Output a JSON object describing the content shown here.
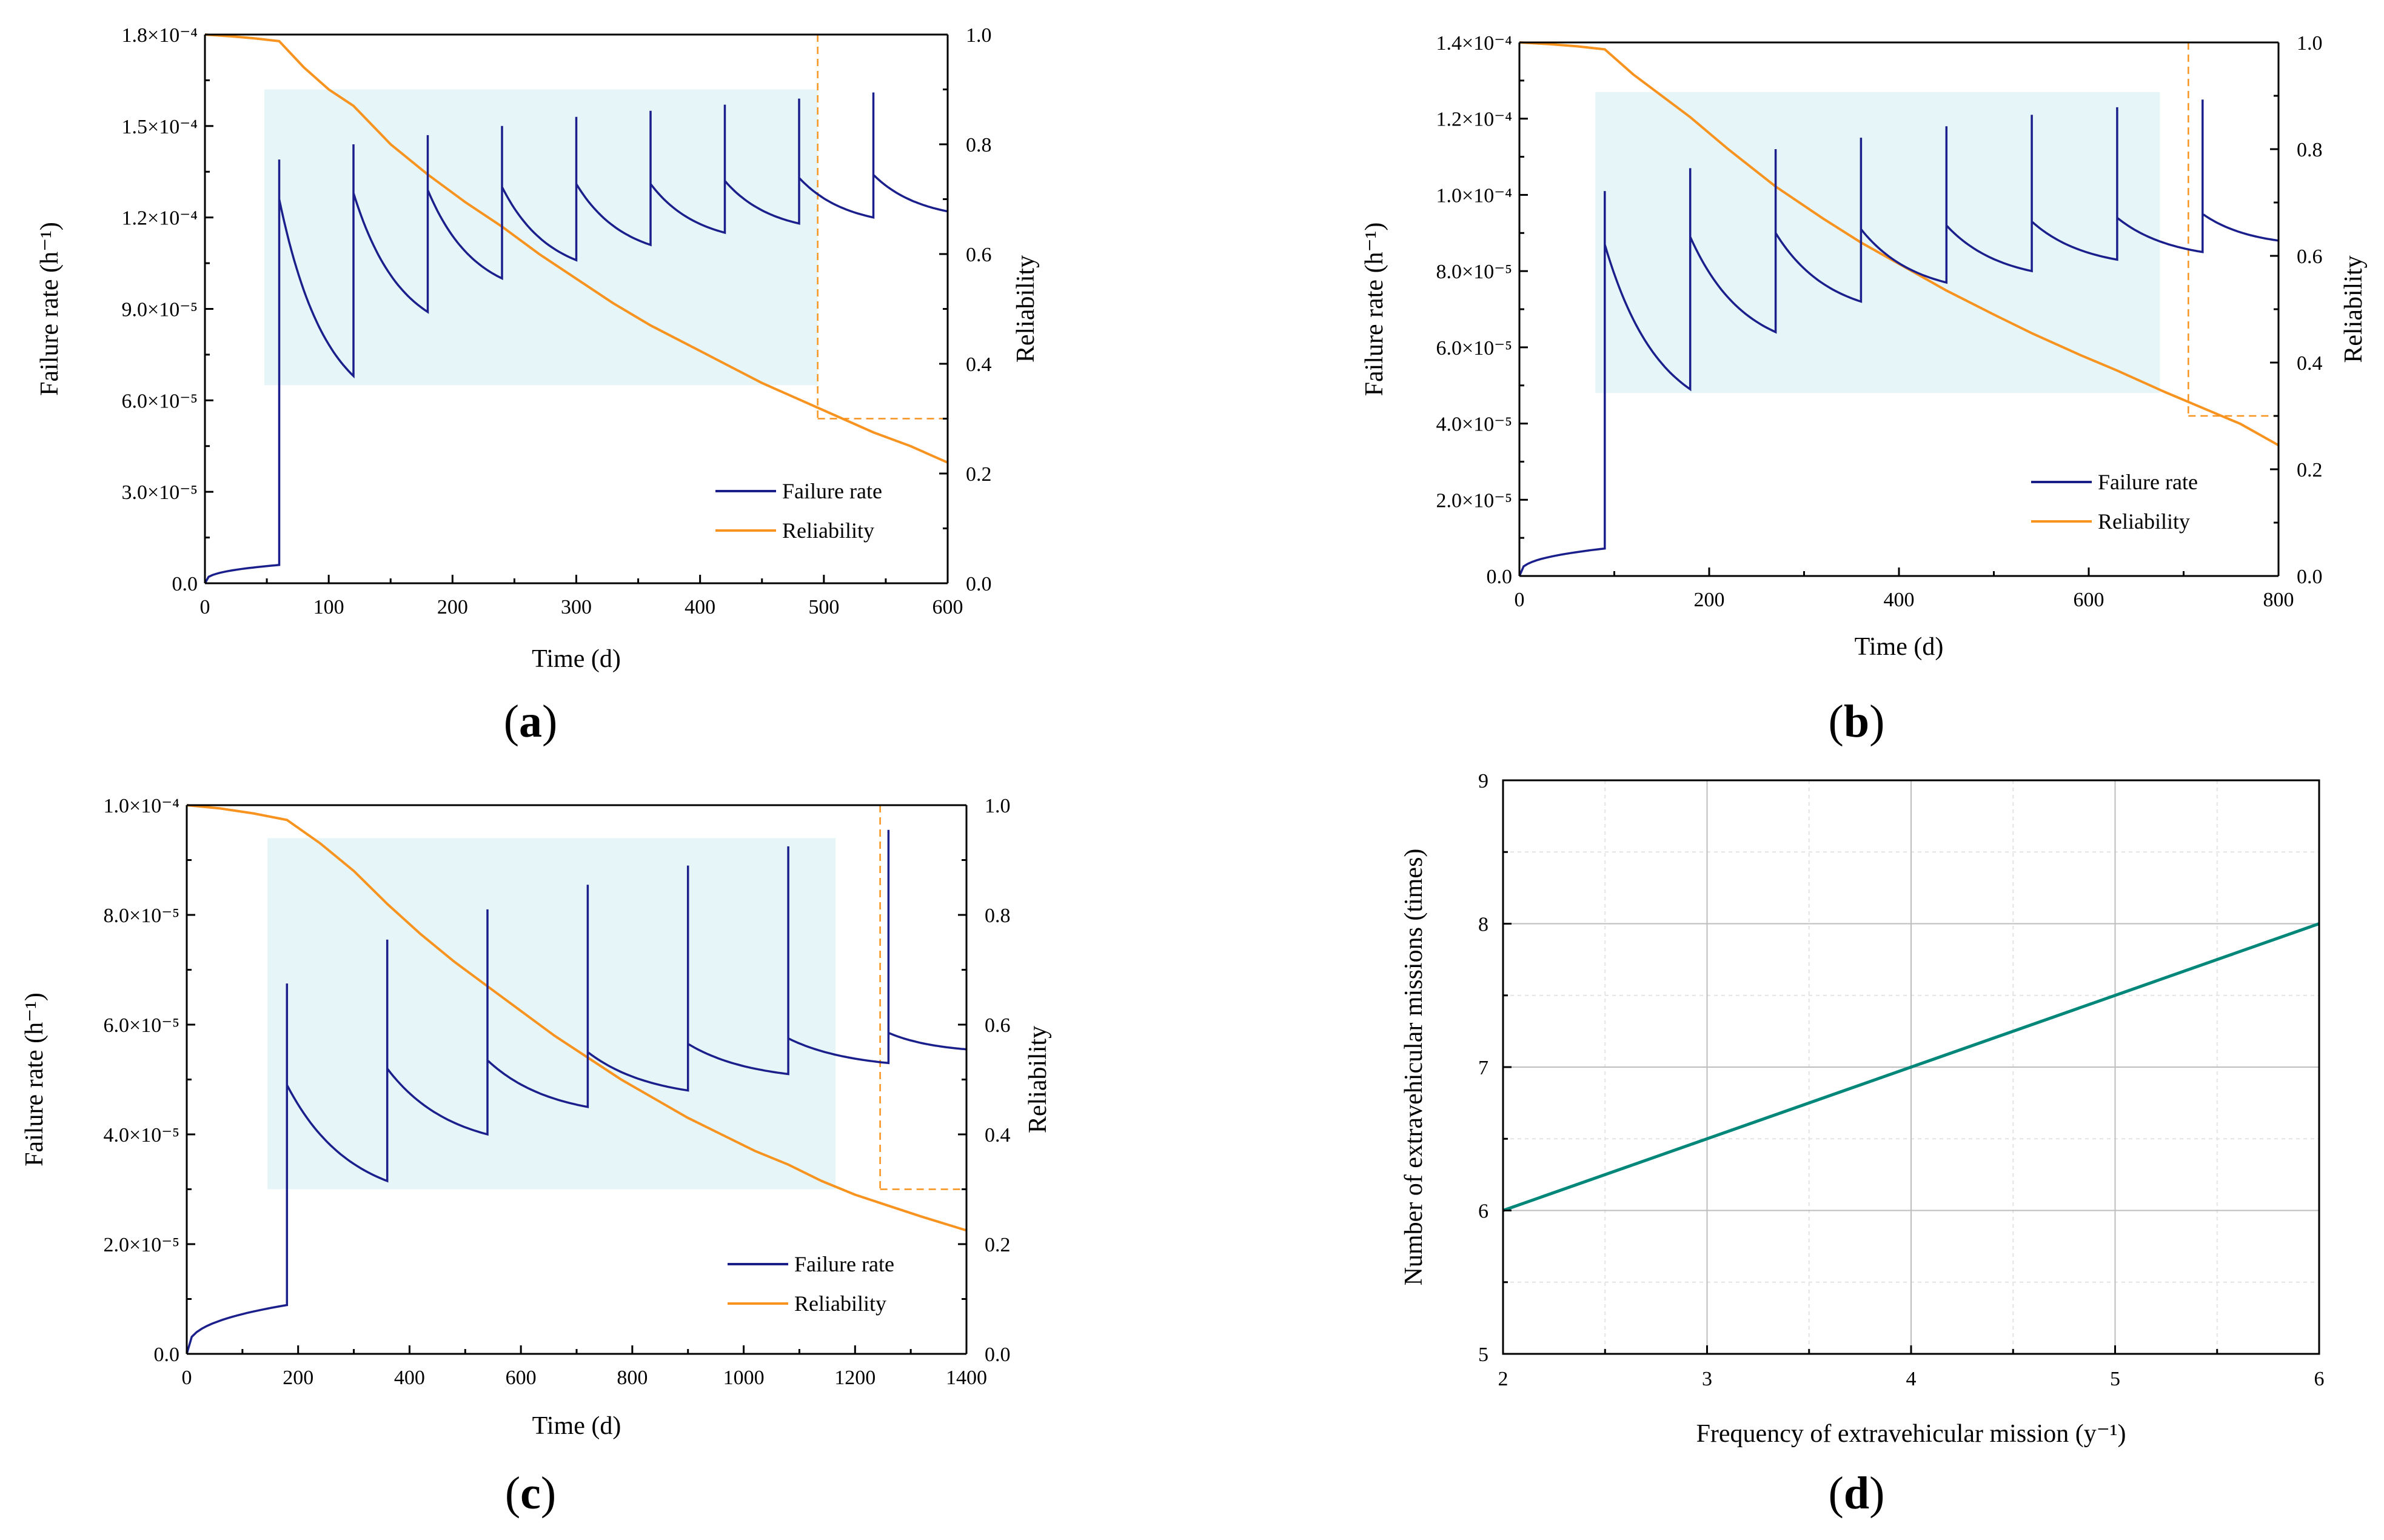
{
  "colors": {
    "failure": "#1a1f8c",
    "reliability": "#f7931e",
    "highlight": "#e6f5f8",
    "teal": "#00877a"
  },
  "chart_data": [
    {
      "id": "a",
      "panel_label": "(a)",
      "panel_letter": "a",
      "type": "line",
      "xlabel": "Time (d)",
      "ylabel_left": "Failure rate (h⁻¹)",
      "ylabel_right": "Reliability",
      "xlim": [
        0,
        600
      ],
      "ylim_left": [
        0,
        0.00018
      ],
      "ylim_right": [
        0,
        1
      ],
      "x_ticks": [
        "0",
        "100",
        "200",
        "300",
        "400",
        "500",
        "600"
      ],
      "y_ticks_left": [
        "0.0",
        "3.0×10⁻⁵",
        "6.0×10⁻⁵",
        "9.0×10⁻⁵",
        "1.2×10⁻⁴",
        "1.5×10⁻⁴",
        "1.8×10⁻⁴"
      ],
      "y_ticks_right": [
        "0.0",
        "0.2",
        "0.4",
        "0.6",
        "0.8",
        "1.0"
      ],
      "legend": [
        "Failure rate",
        "Reliability"
      ],
      "highlight": {
        "x": [
          48,
          495
        ],
        "y": [
          6.5e-05,
          0.000162
        ]
      },
      "threshold": {
        "x": 495,
        "reliability": 0.3
      },
      "failure_rate": {
        "initial_end": 6e-06,
        "period": 60,
        "segments": [
          {
            "start": 60,
            "end": 120,
            "peak": 0.000139,
            "post": 0.000126,
            "low": 6.8e-05
          },
          {
            "start": 120,
            "end": 180,
            "peak": 0.000144,
            "post": 0.000128,
            "low": 8.9e-05
          },
          {
            "start": 180,
            "end": 240,
            "peak": 0.000147,
            "post": 0.000129,
            "low": 0.0001
          },
          {
            "start": 240,
            "end": 300,
            "peak": 0.00015,
            "post": 0.00013,
            "low": 0.000106
          },
          {
            "start": 300,
            "end": 360,
            "peak": 0.000153,
            "post": 0.000131,
            "low": 0.000111
          },
          {
            "start": 360,
            "end": 420,
            "peak": 0.000155,
            "post": 0.000131,
            "low": 0.000115
          },
          {
            "start": 420,
            "end": 480,
            "peak": 0.000157,
            "post": 0.000132,
            "low": 0.000118
          },
          {
            "start": 480,
            "end": 540,
            "peak": 0.000159,
            "post": 0.000133,
            "low": 0.00012
          },
          {
            "start": 540,
            "end": 600,
            "peak": 0.000161,
            "post": 0.000134,
            "low": 0.000122
          }
        ]
      },
      "reliability": {
        "x": [
          0,
          20,
          40,
          60,
          80,
          100,
          120,
          150,
          180,
          210,
          240,
          270,
          300,
          330,
          360,
          390,
          420,
          450,
          480,
          510,
          540,
          570,
          600
        ],
        "y": [
          1.0,
          0.997,
          0.993,
          0.988,
          0.94,
          0.9,
          0.87,
          0.8,
          0.745,
          0.695,
          0.65,
          0.6,
          0.555,
          0.51,
          0.47,
          0.435,
          0.4,
          0.365,
          0.335,
          0.305,
          0.275,
          0.25,
          0.22
        ]
      }
    },
    {
      "id": "b",
      "panel_label": "(b)",
      "panel_letter": "b",
      "type": "line",
      "xlabel": "Time (d)",
      "ylabel_left": "Failure rate (h⁻¹)",
      "ylabel_right": "Reliability",
      "xlim": [
        0,
        800
      ],
      "ylim_left": [
        0,
        0.00014
      ],
      "ylim_right": [
        0,
        1
      ],
      "x_ticks": [
        "0",
        "200",
        "400",
        "600",
        "800"
      ],
      "y_ticks_left": [
        "0.0",
        "2.0×10⁻⁵",
        "4.0×10⁻⁵",
        "6.0×10⁻⁵",
        "8.0×10⁻⁵",
        "1.0×10⁻⁴",
        "1.2×10⁻⁴",
        "1.4×10⁻⁴"
      ],
      "y_ticks_right": [
        "0.0",
        "0.2",
        "0.4",
        "0.6",
        "0.8",
        "1.0"
      ],
      "legend": [
        "Failure rate",
        "Reliability"
      ],
      "highlight": {
        "x": [
          80,
          675
        ],
        "y": [
          4.8e-05,
          0.000127
        ]
      },
      "threshold": {
        "x": 705,
        "reliability": 0.3
      },
      "failure_rate": {
        "initial_end": 7.2e-06,
        "period": 90,
        "segments": [
          {
            "start": 90,
            "end": 180,
            "peak": 0.000101,
            "post": 8.7e-05,
            "low": 4.9e-05
          },
          {
            "start": 180,
            "end": 270,
            "peak": 0.000107,
            "post": 8.9e-05,
            "low": 6.4e-05
          },
          {
            "start": 270,
            "end": 360,
            "peak": 0.000112,
            "post": 9e-05,
            "low": 7.2e-05
          },
          {
            "start": 360,
            "end": 450,
            "peak": 0.000115,
            "post": 9.1e-05,
            "low": 7.7e-05
          },
          {
            "start": 450,
            "end": 540,
            "peak": 0.000118,
            "post": 9.2e-05,
            "low": 8e-05
          },
          {
            "start": 540,
            "end": 630,
            "peak": 0.000121,
            "post": 9.3e-05,
            "low": 8.3e-05
          },
          {
            "start": 630,
            "end": 720,
            "peak": 0.000123,
            "post": 9.4e-05,
            "low": 8.5e-05
          },
          {
            "start": 720,
            "end": 800,
            "peak": 0.000125,
            "post": 9.5e-05,
            "low": 8.8e-05
          }
        ]
      },
      "reliability": {
        "x": [
          0,
          30,
          60,
          90,
          120,
          150,
          180,
          220,
          270,
          320,
          360,
          410,
          450,
          500,
          540,
          590,
          630,
          680,
          720,
          760,
          800
        ],
        "y": [
          1.0,
          0.997,
          0.993,
          0.987,
          0.94,
          0.9,
          0.86,
          0.8,
          0.73,
          0.67,
          0.625,
          0.575,
          0.535,
          0.49,
          0.455,
          0.415,
          0.385,
          0.345,
          0.315,
          0.285,
          0.245
        ]
      }
    },
    {
      "id": "c",
      "panel_label": "(c)",
      "panel_letter": "c",
      "type": "line",
      "xlabel": "Time (d)",
      "ylabel_left": "Failure rate (h⁻¹)",
      "ylabel_right": "Reliability",
      "xlim": [
        0,
        1400
      ],
      "ylim_left": [
        0,
        0.0001
      ],
      "ylim_right": [
        0,
        1
      ],
      "x_ticks": [
        "0",
        "200",
        "400",
        "600",
        "800",
        "1000",
        "1200",
        "1400"
      ],
      "y_ticks_left": [
        "0.0",
        "2.0×10⁻⁵",
        "4.0×10⁻⁵",
        "6.0×10⁻⁵",
        "8.0×10⁻⁵",
        "1.0×10⁻⁴"
      ],
      "y_ticks_right": [
        "0.0",
        "0.2",
        "0.4",
        "0.6",
        "0.8",
        "1.0"
      ],
      "legend": [
        "Failure rate",
        "Reliability"
      ],
      "highlight": {
        "x": [
          145,
          1165
        ],
        "y": [
          3e-05,
          9.4e-05
        ]
      },
      "threshold": {
        "x": 1245,
        "reliability": 0.3
      },
      "failure_rate": {
        "initial_end": 8.9e-06,
        "period": 180,
        "segments": [
          {
            "start": 180,
            "end": 360,
            "peak": 6.75e-05,
            "post": 4.9e-05,
            "low": 3.15e-05
          },
          {
            "start": 360,
            "end": 540,
            "peak": 7.55e-05,
            "post": 5.2e-05,
            "low": 4e-05
          },
          {
            "start": 540,
            "end": 720,
            "peak": 8.1e-05,
            "post": 5.35e-05,
            "low": 4.5e-05
          },
          {
            "start": 720,
            "end": 900,
            "peak": 8.55e-05,
            "post": 5.5e-05,
            "low": 4.8e-05
          },
          {
            "start": 900,
            "end": 1080,
            "peak": 8.9e-05,
            "post": 5.65e-05,
            "low": 5.1e-05
          },
          {
            "start": 1080,
            "end": 1260,
            "peak": 9.25e-05,
            "post": 5.75e-05,
            "low": 5.3e-05
          },
          {
            "start": 1260,
            "end": 1400,
            "peak": 9.55e-05,
            "post": 5.85e-05,
            "low": 5.55e-05
          }
        ]
      },
      "reliability": {
        "x": [
          0,
          60,
          120,
          180,
          240,
          300,
          360,
          420,
          480,
          540,
          600,
          660,
          720,
          780,
          840,
          900,
          960,
          1020,
          1080,
          1140,
          1200,
          1260,
          1320,
          1400
        ],
        "y": [
          1.0,
          0.994,
          0.985,
          0.973,
          0.93,
          0.88,
          0.82,
          0.765,
          0.715,
          0.67,
          0.625,
          0.58,
          0.54,
          0.5,
          0.465,
          0.43,
          0.4,
          0.37,
          0.345,
          0.315,
          0.29,
          0.27,
          0.25,
          0.225
        ]
      }
    },
    {
      "id": "d",
      "panel_label": "(d)",
      "panel_letter": "d",
      "type": "line",
      "xlabel": "Frequency of extravehicular mission (y⁻¹)",
      "ylabel": "Number of extravehicular missions (times)",
      "xlim": [
        2,
        6
      ],
      "ylim": [
        5,
        9
      ],
      "x_ticks": [
        "2",
        "3",
        "4",
        "5",
        "6"
      ],
      "y_ticks": [
        "5",
        "6",
        "7",
        "8",
        "9"
      ],
      "grid": true,
      "x": [
        2,
        3,
        4,
        5,
        6
      ],
      "y": [
        6,
        6.5,
        7,
        7.5,
        8
      ]
    }
  ]
}
